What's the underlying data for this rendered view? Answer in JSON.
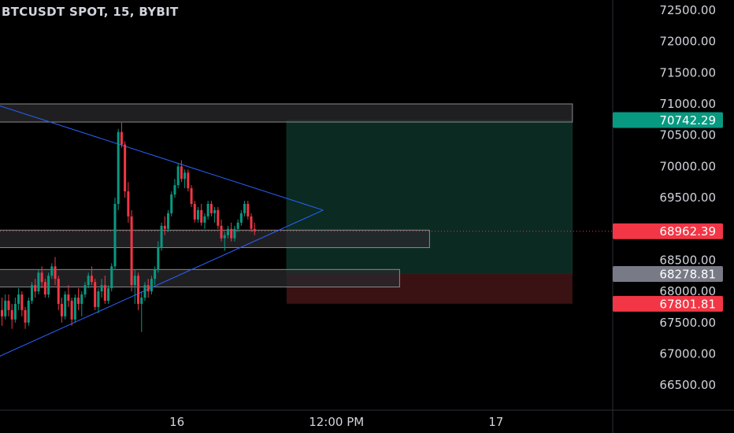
{
  "header": {
    "title": "BTCUSDT SPOT, 15, BYBIT"
  },
  "chart_data": {
    "type": "candlestick",
    "symbol": "BTCUSDT",
    "interval": "15",
    "exchange": "BYBIT",
    "ylim": [
      66200,
      72550
    ],
    "y_ticks": [
      72500,
      72000,
      71500,
      71000,
      70500,
      70000,
      69500,
      68500,
      68000,
      67500,
      67000,
      66500
    ],
    "y_tick_labels": [
      "72500.00",
      "72000.00",
      "71500.00",
      "71000.00",
      "70500.00",
      "70000.00",
      "69500.00",
      "68500.00",
      "68000.00",
      "67500.00",
      "67000.00",
      "66500.00"
    ],
    "x_ticks": [
      {
        "label": "16",
        "index": 53
      },
      {
        "label": "12:00 PM",
        "index": 101
      },
      {
        "label": "17",
        "index": 149
      }
    ],
    "ohlc": [
      [
        67700,
        67900,
        67450,
        67600
      ],
      [
        67600,
        67950,
        67550,
        67850
      ],
      [
        67850,
        67950,
        67600,
        67700
      ],
      [
        67700,
        67800,
        67400,
        67550
      ],
      [
        67550,
        67900,
        67500,
        67800
      ],
      [
        67800,
        68050,
        67700,
        67950
      ],
      [
        67950,
        68000,
        67600,
        67700
      ],
      [
        67700,
        67750,
        67400,
        67500
      ],
      [
        67500,
        67900,
        67450,
        67850
      ],
      [
        67850,
        68150,
        67800,
        68100
      ],
      [
        68100,
        68200,
        67900,
        68000
      ],
      [
        68000,
        68350,
        67950,
        68300
      ],
      [
        68300,
        68400,
        68050,
        68150
      ],
      [
        68150,
        68200,
        67900,
        67950
      ],
      [
        67950,
        68300,
        67900,
        68250
      ],
      [
        68250,
        68450,
        68200,
        68400
      ],
      [
        68400,
        68550,
        68100,
        68200
      ],
      [
        68200,
        68250,
        67700,
        67800
      ],
      [
        67800,
        67900,
        67500,
        67600
      ],
      [
        67600,
        68000,
        67550,
        67950
      ],
      [
        67950,
        68100,
        67750,
        67850
      ],
      [
        67850,
        67900,
        67450,
        67550
      ],
      [
        67550,
        67950,
        67500,
        67900
      ],
      [
        67900,
        68050,
        67700,
        67800
      ],
      [
        67800,
        68000,
        67600,
        67950
      ],
      [
        67950,
        68150,
        67900,
        68100
      ],
      [
        68100,
        68300,
        68050,
        68250
      ],
      [
        68250,
        68400,
        68100,
        68150
      ],
      [
        68150,
        68200,
        67700,
        67750
      ],
      [
        67750,
        68050,
        67650,
        68000
      ],
      [
        68000,
        68200,
        67900,
        68100
      ],
      [
        68100,
        68250,
        67800,
        67850
      ],
      [
        67850,
        68100,
        67800,
        68050
      ],
      [
        68050,
        68450,
        68000,
        68400
      ],
      [
        68400,
        69500,
        68350,
        69400
      ],
      [
        69400,
        70600,
        69300,
        70550
      ],
      [
        70550,
        70700,
        70300,
        70350
      ],
      [
        70350,
        70400,
        69500,
        69600
      ],
      [
        69600,
        69750,
        69100,
        69200
      ],
      [
        69200,
        69300,
        68000,
        68100
      ],
      [
        68100,
        68350,
        67800,
        68250
      ],
      [
        68250,
        68300,
        67700,
        67800
      ],
      [
        67800,
        68000,
        67350,
        67900
      ],
      [
        67900,
        68150,
        67850,
        68100
      ],
      [
        68100,
        68200,
        67900,
        68000
      ],
      [
        68000,
        68250,
        67950,
        68200
      ],
      [
        68200,
        68400,
        68100,
        68350
      ],
      [
        68350,
        68800,
        68300,
        68700
      ],
      [
        68700,
        69100,
        68650,
        69050
      ],
      [
        69050,
        69200,
        68900,
        69000
      ],
      [
        69000,
        69300,
        68950,
        69250
      ],
      [
        69250,
        69600,
        69200,
        69550
      ],
      [
        69550,
        69800,
        69500,
        69700
      ],
      [
        69700,
        70050,
        69650,
        70000
      ],
      [
        70000,
        70100,
        69750,
        69800
      ],
      [
        69800,
        69950,
        69650,
        69900
      ],
      [
        69900,
        69950,
        69600,
        69650
      ],
      [
        69650,
        69700,
        69350,
        69400
      ],
      [
        69400,
        69450,
        69100,
        69150
      ],
      [
        69150,
        69350,
        69100,
        69300
      ],
      [
        69300,
        69400,
        69050,
        69100
      ],
      [
        69100,
        69250,
        69000,
        69200
      ],
      [
        69200,
        69450,
        69150,
        69400
      ],
      [
        69400,
        69450,
        69200,
        69250
      ],
      [
        69250,
        69350,
        69100,
        69300
      ],
      [
        69300,
        69350,
        69000,
        69050
      ],
      [
        69050,
        69150,
        68800,
        68850
      ],
      [
        68850,
        68950,
        68650,
        68900
      ],
      [
        68900,
        69050,
        68850,
        69000
      ],
      [
        69000,
        69100,
        68800,
        68850
      ],
      [
        68850,
        69050,
        68800,
        69000
      ],
      [
        69000,
        69150,
        68950,
        69100
      ],
      [
        69100,
        69300,
        69050,
        69250
      ],
      [
        69250,
        69450,
        69200,
        69400
      ],
      [
        69400,
        69450,
        69150,
        69200
      ],
      [
        69200,
        69250,
        68950,
        69000
      ],
      [
        69000,
        69100,
        68900,
        68962.39
      ]
    ],
    "zones": [
      {
        "name": "supply-zone-top",
        "top": 71000,
        "bottom": 70710,
        "i0": -5,
        "i1": 172,
        "color": "#2a2a2e"
      },
      {
        "name": "zone-mid",
        "top": 68980,
        "bottom": 68700,
        "i0": -5,
        "i1": 129,
        "color": "#2a2a2e"
      },
      {
        "name": "zone-low",
        "top": 68350,
        "bottom": 68070,
        "i0": -5,
        "i1": 120,
        "color": "#2a2a2e"
      }
    ],
    "trendlines": [
      {
        "name": "upper-trendline",
        "from": [
          -5,
          71050
        ],
        "to": [
          97,
          69300
        ]
      },
      {
        "name": "lower-trendline",
        "from": [
          -5,
          66850
        ],
        "to": [
          97,
          69300
        ]
      }
    ],
    "position": {
      "entry": 68278.81,
      "target": 70742.29,
      "stop": 67801.81,
      "i0": 86,
      "i1": 172,
      "profit_color": "#0b2a22",
      "loss_color": "#3a1214"
    },
    "price_badges": [
      {
        "name": "target-price-badge",
        "label": "70742.29",
        "value": 70742.29,
        "color": "#089981"
      },
      {
        "name": "current-price-badge",
        "label": "68962.39",
        "value": 68962.39,
        "color": "#f23645"
      },
      {
        "name": "entry-price-badge",
        "label": "68278.81",
        "value": 68278.81,
        "color": "#787b86"
      },
      {
        "name": "stop-price-badge",
        "label": "67801.81",
        "value": 67801.81,
        "color": "#f23645"
      }
    ],
    "last_price": 68962.39,
    "colors": {
      "up": "#089981",
      "down": "#f23645",
      "trendline": "#2962ff",
      "grid": "#1a1a1a",
      "text": "#d1d4dc"
    }
  }
}
